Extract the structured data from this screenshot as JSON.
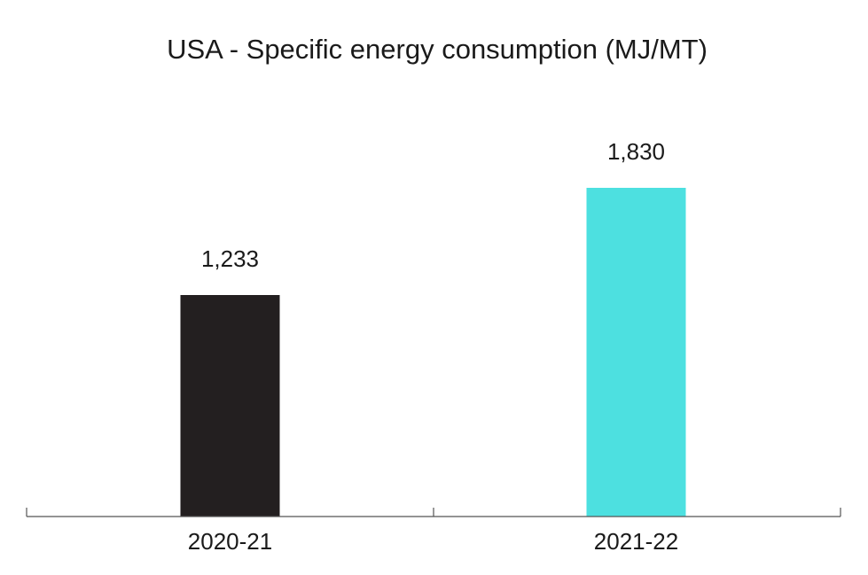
{
  "chart_data": {
    "type": "bar",
    "title": "USA - Specific energy consumption (MJ/MT)",
    "categories": [
      "2020-21",
      "2021-22"
    ],
    "values": [
      1233,
      1830
    ],
    "data_labels": [
      "1,233",
      "1,830"
    ],
    "bar_colors": [
      "#231f20",
      "#4de0e0"
    ],
    "ylim": [
      0,
      1990
    ],
    "grid": false,
    "legend": "none",
    "xlabel": "",
    "ylabel": ""
  }
}
